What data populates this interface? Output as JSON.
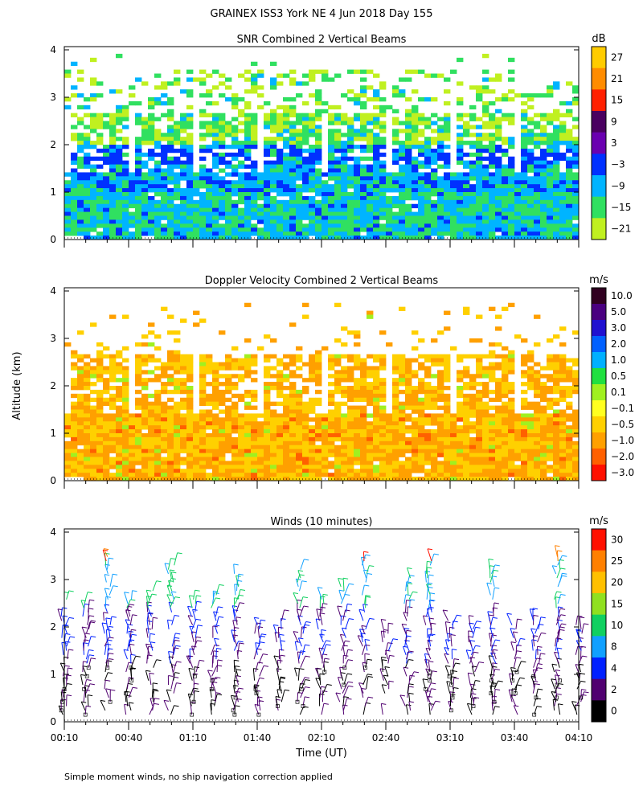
{
  "title": "GRAINEX ISS3 York NE   4 Jun 2018 Day 155",
  "ylabel": "Altitude (km)",
  "xlabel": "Time (UT)",
  "footnote": "Simple moment winds, no ship navigation correction applied",
  "x_ticks": [
    "00:10",
    "00:40",
    "01:10",
    "01:40",
    "02:10",
    "02:40",
    "03:10",
    "03:40",
    "04:10"
  ],
  "y_ticks": [
    "0",
    "1",
    "2",
    "3",
    "4"
  ],
  "colors": {
    "frame": "#000000"
  },
  "chart_data": [
    {
      "type": "heatmap",
      "title": "SNR Combined 2 Vertical Beams",
      "units": "dB",
      "x_range_minutes": [
        10,
        250
      ],
      "ylim": [
        0,
        4
      ],
      "colorbar": {
        "labels": [
          "27",
          "21",
          "15",
          "9",
          "3",
          "−3",
          "−9",
          "−15",
          "−21"
        ],
        "colors": [
          "#ffcc00",
          "#ff8c00",
          "#ff2000",
          "#4a0060",
          "#6a00b0",
          "#0030ff",
          "#00b4ff",
          "#30e060",
          "#c0f020"
        ]
      }
    },
    {
      "type": "heatmap",
      "title": "Doppler Velocity Combined 2 Vertical Beams",
      "units": "m/s",
      "x_range_minutes": [
        10,
        250
      ],
      "ylim": [
        0,
        4
      ],
      "colorbar": {
        "labels": [
          "10.0",
          "5.0",
          "3.0",
          "2.0",
          "1.0",
          "0.5",
          "0.1",
          "−0.1",
          "−0.5",
          "−1.0",
          "−2.0",
          "−3.0"
        ],
        "colors": [
          "#300020",
          "#4a0080",
          "#2010d0",
          "#0060ff",
          "#00b0ff",
          "#20e040",
          "#a0f020",
          "#ffff20",
          "#ffd000",
          "#ffa000",
          "#ff6000",
          "#ff1000"
        ]
      }
    },
    {
      "type": "barbs",
      "title": "Winds (10 minutes)",
      "units": "m/s",
      "x_range_minutes": [
        10,
        250
      ],
      "ylim": [
        0,
        4
      ],
      "colorbar": {
        "labels": [
          "30",
          "25",
          "20",
          "15",
          "10",
          "8",
          "4",
          "2",
          "0"
        ],
        "colors": [
          "#ff1000",
          "#ff8000",
          "#ffc000",
          "#90e020",
          "#10d060",
          "#10a0ff",
          "#0020ff",
          "#500070",
          "#000000"
        ]
      }
    }
  ]
}
